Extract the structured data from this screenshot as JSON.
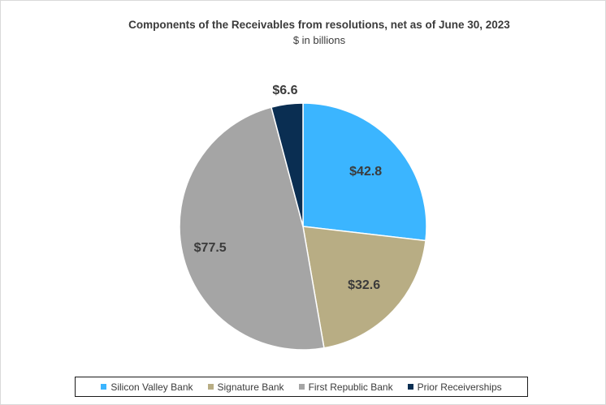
{
  "chart_data": {
    "type": "pie",
    "title": "Components of the Receivables from resolutions, net as of June 30, 2023",
    "subtitle": "$ in billions",
    "categories": [
      "Silicon Valley Bank",
      "Signature Bank",
      "First Republic Bank",
      "Prior Receiverships"
    ],
    "values": [
      42.8,
      32.6,
      77.5,
      6.6
    ],
    "data_labels": [
      "$42.8",
      "$32.6",
      "$77.5",
      "$6.6"
    ],
    "colors": [
      "#3bb5ff",
      "#b8ad84",
      "#a5a5a5",
      "#0a2e52"
    ],
    "legend_position": "bottom"
  }
}
